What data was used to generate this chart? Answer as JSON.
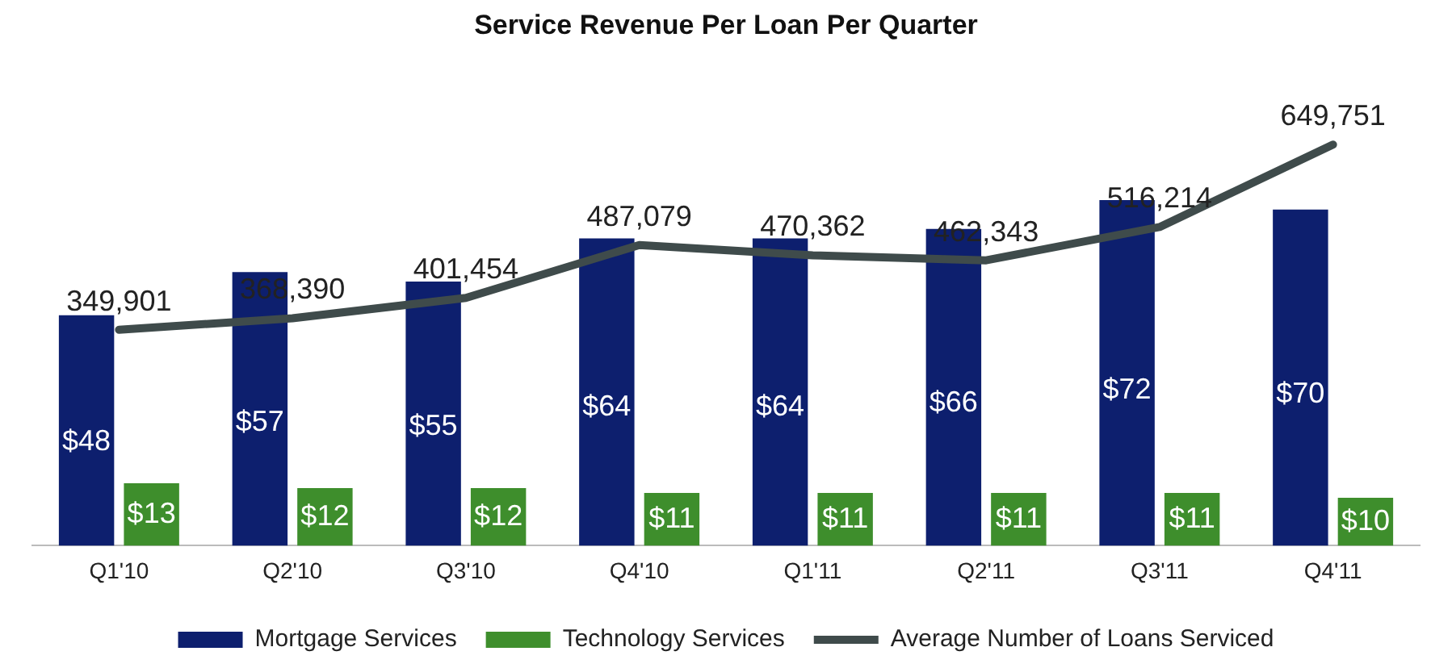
{
  "chart_data": {
    "type": "bar",
    "title": "Service Revenue Per Loan Per Quarter",
    "categories": [
      "Q1'10",
      "Q2'10",
      "Q3'10",
      "Q4'10",
      "Q1'11",
      "Q2'11",
      "Q3'11",
      "Q4'11"
    ],
    "series": [
      {
        "name": "Mortgage Services",
        "color": "#0d1f6e",
        "values": [
          48,
          57,
          55,
          64,
          64,
          66,
          72,
          70
        ],
        "value_labels": [
          "$48",
          "$57",
          "$55",
          "$64",
          "$64",
          "$66",
          "$72",
          "$70"
        ]
      },
      {
        "name": "Technology Services",
        "color": "#3e8e2c",
        "values": [
          13,
          12,
          12,
          11,
          11,
          11,
          11,
          10
        ],
        "value_labels": [
          "$13",
          "$12",
          "$12",
          "$11",
          "$11",
          "$11",
          "$11",
          "$10"
        ]
      },
      {
        "name": "Average Number of Loans Serviced",
        "type": "line",
        "axis": "y2",
        "color": "#3f4b4b",
        "values": [
          349901,
          368390,
          401454,
          487079,
          470362,
          462343,
          516214,
          649751
        ],
        "value_labels": [
          "349,901",
          "368,390",
          "401,454",
          "487,079",
          "470,362",
          "462,343",
          "516,214",
          "649,751"
        ]
      }
    ],
    "legend": "bottom",
    "grid": false,
    "marker": "none",
    "line_style": "solid"
  }
}
